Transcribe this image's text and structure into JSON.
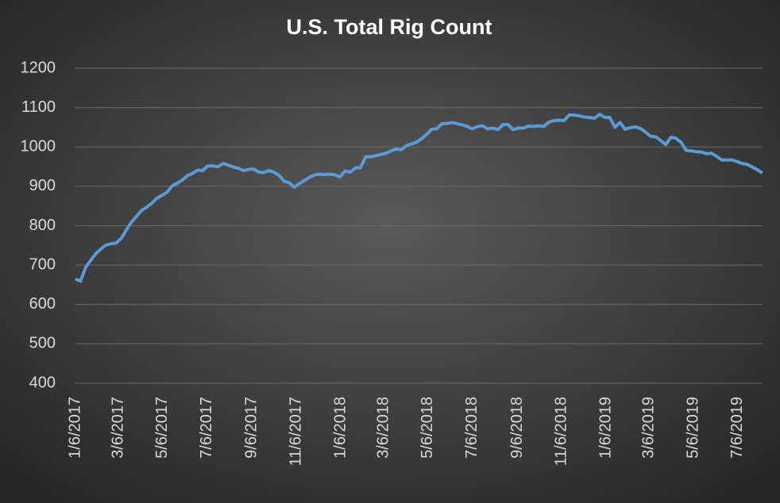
{
  "chart_data": {
    "type": "line",
    "title": "U.S. Total Rig Count",
    "x": [
      "1/6/2017",
      "1/13/2017",
      "1/20/2017",
      "1/27/2017",
      "2/3/2017",
      "2/10/2017",
      "2/17/2017",
      "2/24/2017",
      "3/3/2017",
      "3/10/2017",
      "3/17/2017",
      "3/24/2017",
      "3/31/2017",
      "4/7/2017",
      "4/14/2017",
      "4/21/2017",
      "4/28/2017",
      "5/5/2017",
      "5/12/2017",
      "5/19/2017",
      "5/26/2017",
      "6/2/2017",
      "6/9/2017",
      "6/16/2017",
      "6/23/2017",
      "6/30/2017",
      "7/7/2017",
      "7/14/2017",
      "7/21/2017",
      "7/28/2017",
      "8/4/2017",
      "8/11/2017",
      "8/18/2017",
      "8/25/2017",
      "9/1/2017",
      "9/8/2017",
      "9/15/2017",
      "9/22/2017",
      "9/29/2017",
      "10/6/2017",
      "10/13/2017",
      "10/20/2017",
      "10/27/2017",
      "11/3/2017",
      "11/10/2017",
      "11/17/2017",
      "11/24/2017",
      "12/1/2017",
      "12/8/2017",
      "12/15/2017",
      "12/22/2017",
      "12/29/2017",
      "1/5/2018",
      "1/12/2018",
      "1/19/2018",
      "1/26/2018",
      "2/2/2018",
      "2/9/2018",
      "2/16/2018",
      "2/23/2018",
      "3/2/2018",
      "3/9/2018",
      "3/16/2018",
      "3/23/2018",
      "3/30/2018",
      "4/6/2018",
      "4/13/2018",
      "4/20/2018",
      "4/27/2018",
      "5/4/2018",
      "5/11/2018",
      "5/18/2018",
      "5/25/2018",
      "6/1/2018",
      "6/8/2018",
      "6/15/2018",
      "6/22/2018",
      "6/29/2018",
      "7/6/2018",
      "7/13/2018",
      "7/20/2018",
      "7/27/2018",
      "8/3/2018",
      "8/10/2018",
      "8/17/2018",
      "8/24/2018",
      "8/31/2018",
      "9/7/2018",
      "9/14/2018",
      "9/21/2018",
      "9/28/2018",
      "10/5/2018",
      "10/12/2018",
      "10/19/2018",
      "10/26/2018",
      "11/2/2018",
      "11/9/2018",
      "11/16/2018",
      "11/23/2018",
      "11/30/2018",
      "12/7/2018",
      "12/14/2018",
      "12/21/2018",
      "12/28/2018",
      "1/4/2019",
      "1/11/2019",
      "1/18/2019",
      "1/25/2019",
      "2/1/2019",
      "2/8/2019",
      "2/15/2019",
      "2/22/2019",
      "3/1/2019",
      "3/8/2019",
      "3/15/2019",
      "3/22/2019",
      "3/29/2019",
      "4/5/2019",
      "4/12/2019",
      "4/19/2019",
      "4/26/2019",
      "5/3/2019",
      "5/10/2019",
      "5/17/2019",
      "5/24/2019",
      "5/31/2019",
      "6/7/2019",
      "6/14/2019",
      "6/21/2019",
      "6/28/2019",
      "7/5/2019",
      "7/12/2019",
      "7/19/2019",
      "7/26/2019",
      "8/2/2019",
      "8/9/2019"
    ],
    "series": [
      {
        "color": "#5b9bd5",
        "values": [
          665,
          659,
          694,
          712,
          729,
          741,
          751,
          754,
          756,
          768,
          789,
          809,
          824,
          839,
          847,
          857,
          870,
          877,
          885,
          901,
          908,
          916,
          927,
          933,
          941,
          940,
          952,
          952,
          950,
          958,
          954,
          949,
          946,
          940,
          943,
          944,
          936,
          935,
          940,
          936,
          928,
          913,
          909,
          898,
          907,
          915,
          923,
          929,
          931,
          930,
          931,
          929,
          924,
          939,
          936,
          947,
          947,
          975,
          975,
          978,
          981,
          984,
          990,
          995,
          993,
          1003,
          1008,
          1012,
          1021,
          1032,
          1045,
          1046,
          1059,
          1060,
          1062,
          1059,
          1056,
          1052,
          1046,
          1052,
          1054,
          1046,
          1048,
          1044,
          1057,
          1057,
          1044,
          1048,
          1048,
          1053,
          1052,
          1054,
          1052,
          1063,
          1067,
          1068,
          1067,
          1081,
          1081,
          1079,
          1076,
          1075,
          1073,
          1083,
          1075,
          1075,
          1050,
          1062,
          1045,
          1049,
          1051,
          1047,
          1038,
          1027,
          1026,
          1016,
          1006,
          1025,
          1022,
          1012,
          991,
          990,
          988,
          987,
          983,
          984,
          976,
          967,
          967,
          967,
          963,
          958,
          956,
          949,
          942,
          934
        ]
      }
    ],
    "xlim": [
      "1/6/2017",
      "8/9/2019"
    ],
    "xticks": [
      "1/6/2017",
      "3/6/2017",
      "5/6/2017",
      "7/6/2017",
      "9/6/2017",
      "11/6/2017",
      "1/6/2018",
      "3/6/2018",
      "5/6/2018",
      "7/6/2018",
      "9/6/2018",
      "11/6/2018",
      "1/6/2019",
      "3/6/2019",
      "5/6/2019",
      "7/6/2019"
    ],
    "ylim": [
      400,
      1200
    ],
    "yticks": [
      400,
      500,
      600,
      700,
      800,
      900,
      1000,
      1100,
      1200
    ],
    "grid": true
  }
}
